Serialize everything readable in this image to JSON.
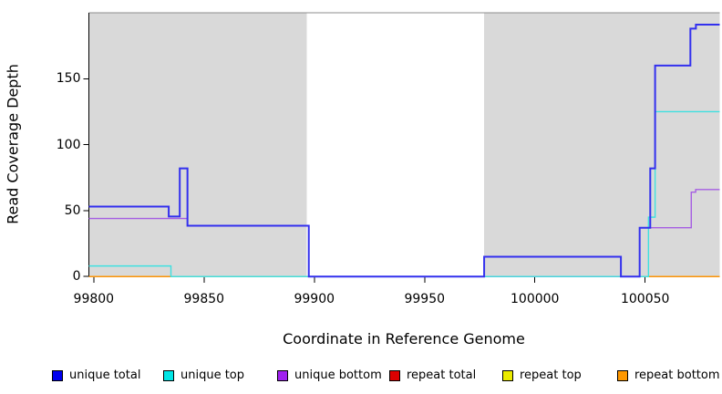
{
  "chart_data": {
    "type": "line",
    "subtype": "step-coverage",
    "title": "",
    "xlabel": "Coordinate in Reference Genome",
    "ylabel": "Read Coverage Depth",
    "xlim": [
      99797.8,
      100083.8
    ],
    "ylim": [
      0,
      200
    ],
    "x_ticks": [
      99800,
      99850,
      99900,
      99950,
      100000,
      100050
    ],
    "y_ticks": [
      0,
      50,
      100,
      150
    ],
    "grid": false,
    "plot_background": "#ffffff",
    "shaded_region_color": "#d9d9d9",
    "background_regions": [
      {
        "from": 99797.8,
        "to": 99896.5
      },
      {
        "from": 99977.0,
        "to": 100083.8
      }
    ],
    "series": [
      {
        "name": "repeat top",
        "color": "#ebeb00",
        "width": 1.4,
        "points": [
          [
            99797.8,
            0
          ],
          [
            100083.8,
            0
          ]
        ]
      },
      {
        "name": "repeat bottom",
        "color": "#ff9800",
        "width": 1.4,
        "points": [
          [
            99797.8,
            0
          ],
          [
            100083.8,
            0
          ]
        ]
      },
      {
        "name": "repeat total",
        "color": "#d05060",
        "width": 1.4,
        "points": [
          [
            99797.8,
            0
          ],
          [
            100083.8,
            0
          ]
        ]
      },
      {
        "name": "unique bottom",
        "color": "#a55ee2",
        "width": 1.4,
        "points": [
          [
            99797.8,
            44
          ],
          [
            99842.5,
            44
          ],
          [
            99842.5,
            38.5
          ],
          [
            99897.5,
            38.5
          ],
          [
            99897.5,
            0
          ],
          [
            100047.5,
            0
          ],
          [
            100047.5,
            37
          ],
          [
            100070.9,
            37
          ],
          [
            100070.9,
            64
          ],
          [
            100072.9,
            64
          ],
          [
            100072.9,
            66
          ],
          [
            100083.8,
            66
          ]
        ]
      },
      {
        "name": "unique top",
        "color": "#3fe0e0",
        "width": 1.4,
        "points": [
          [
            99797.8,
            8
          ],
          [
            99835,
            8
          ],
          [
            99835,
            0
          ],
          [
            100051.5,
            0
          ],
          [
            100051.5,
            45
          ],
          [
            100054.5,
            45
          ],
          [
            100054.5,
            125
          ],
          [
            100083.8,
            125
          ]
        ]
      },
      {
        "name": "unique total",
        "color": "#3330ee",
        "width": 2,
        "points": [
          [
            99797.8,
            53
          ],
          [
            99834,
            53
          ],
          [
            99834,
            45.5
          ],
          [
            99839,
            45.5
          ],
          [
            99839,
            82
          ],
          [
            99842.5,
            82
          ],
          [
            99842.5,
            38.5
          ],
          [
            99897.5,
            38.5
          ],
          [
            99897.5,
            0
          ],
          [
            99977,
            0
          ],
          [
            99977,
            15
          ],
          [
            100039,
            15
          ],
          [
            100039,
            0
          ],
          [
            100047.5,
            0
          ],
          [
            100047.5,
            37
          ],
          [
            100052.3,
            37
          ],
          [
            100052.3,
            82
          ],
          [
            100054.5,
            82
          ],
          [
            100054.5,
            160
          ],
          [
            100070.5,
            160
          ],
          [
            100070.5,
            188
          ],
          [
            100073,
            188
          ],
          [
            100073,
            191
          ],
          [
            100083.8,
            191
          ]
        ]
      }
    ],
    "zero_overlap_segments": [
      {
        "from": 99797.8,
        "to": 99835,
        "color": "#ff9800"
      },
      {
        "from": 99835,
        "to": 99897.5,
        "color": "#8ed88e"
      },
      {
        "from": 100047.5,
        "to": 100051.5,
        "color": "#8ed88e"
      },
      {
        "from": 100051.5,
        "to": 100083.8,
        "color": "#ff9800"
      }
    ],
    "legend_position": "bottom"
  },
  "legend": {
    "items": [
      {
        "label": "unique total",
        "color": "#0000ee"
      },
      {
        "label": "unique top",
        "color": "#00e5e5"
      },
      {
        "label": "unique bottom",
        "color": "#a020f0"
      },
      {
        "label": "repeat total",
        "color": "#dd0000"
      },
      {
        "label": "repeat top",
        "color": "#ebeb00"
      },
      {
        "label": "repeat bottom",
        "color": "#ff9800"
      }
    ]
  },
  "axes_style": {
    "axis_color": "#000000",
    "top_border_color": "#8c8c8c"
  }
}
